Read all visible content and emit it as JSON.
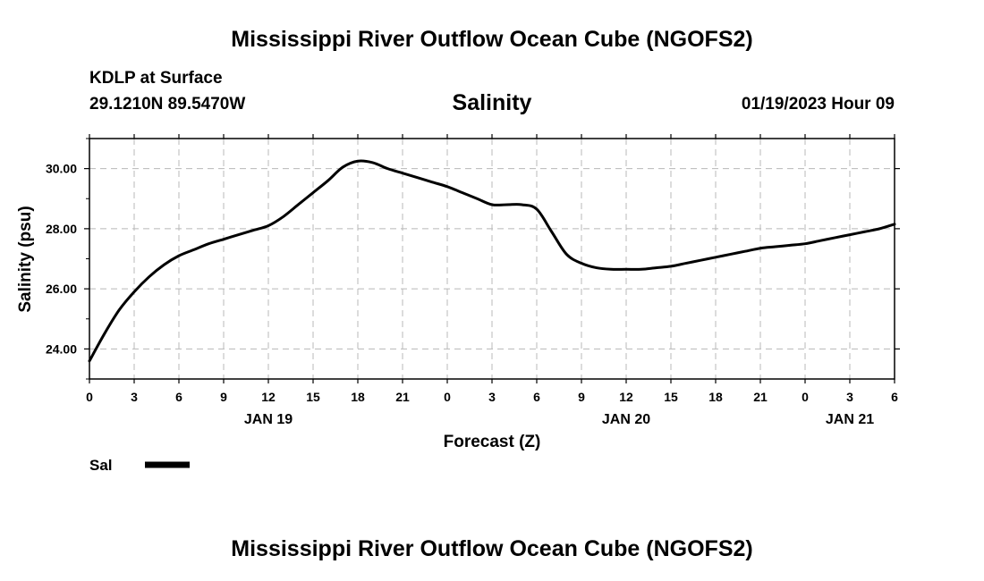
{
  "header": {
    "title": "Mississippi River Outflow Ocean Cube (NGOFS2)",
    "station": "KDLP at Surface",
    "coordinates": "29.1210N  89.5470W",
    "timestamp": "01/19/2023 Hour 09"
  },
  "footer": {
    "title": "Mississippi River Outflow Ocean Cube (NGOFS2)"
  },
  "chart_data": {
    "type": "line",
    "title": "Salinity",
    "xlabel": "Forecast (Z)",
    "ylabel": "Salinity (psu)",
    "xlim": [
      0,
      54
    ],
    "ylim": [
      23,
      31
    ],
    "grid": true,
    "x_ticks": [
      0,
      3,
      6,
      9,
      12,
      15,
      18,
      21,
      24,
      27,
      30,
      33,
      36,
      39,
      42,
      45,
      48,
      51,
      54
    ],
    "x_tick_labels": [
      "0",
      "3",
      "6",
      "9",
      "12",
      "15",
      "18",
      "21",
      "0",
      "3",
      "6",
      "9",
      "12",
      "15",
      "18",
      "21",
      "0",
      "3",
      "6"
    ],
    "y_ticks": [
      24,
      26,
      28,
      30
    ],
    "y_tick_labels": [
      "24.00",
      "26.00",
      "28.00",
      "30.00"
    ],
    "date_labels": [
      {
        "x": 12,
        "label": "JAN 19"
      },
      {
        "x": 36,
        "label": "JAN 20"
      },
      {
        "x": 51,
        "label": "JAN 21"
      }
    ],
    "legend": {
      "position": "bottom-left",
      "label": "Sal"
    },
    "series": [
      {
        "name": "Sal",
        "color": "#000000",
        "x": [
          0,
          1,
          2,
          3,
          4,
          5,
          6,
          7,
          8,
          9,
          10,
          11,
          12,
          13,
          14,
          15,
          16,
          17,
          18,
          19,
          20,
          21,
          22,
          23,
          24,
          25,
          26,
          27,
          28,
          29,
          30,
          31,
          32,
          33,
          34,
          35,
          36,
          37,
          38,
          39,
          40,
          41,
          42,
          43,
          44,
          45,
          46,
          47,
          48,
          49,
          50,
          51,
          52,
          53,
          54
        ],
        "values": [
          23.6,
          24.5,
          25.3,
          25.9,
          26.4,
          26.8,
          27.1,
          27.3,
          27.5,
          27.65,
          27.8,
          27.95,
          28.1,
          28.4,
          28.8,
          29.2,
          29.6,
          30.05,
          30.25,
          30.2,
          30.0,
          29.85,
          29.7,
          29.55,
          29.4,
          29.2,
          29.0,
          28.8,
          28.8,
          28.8,
          28.65,
          27.9,
          27.15,
          26.85,
          26.7,
          26.65,
          26.65,
          26.65,
          26.7,
          26.75,
          26.85,
          26.95,
          27.05,
          27.15,
          27.25,
          27.35,
          27.4,
          27.45,
          27.5,
          27.6,
          27.7,
          27.8,
          27.9,
          28.0,
          28.15
        ]
      }
    ]
  }
}
